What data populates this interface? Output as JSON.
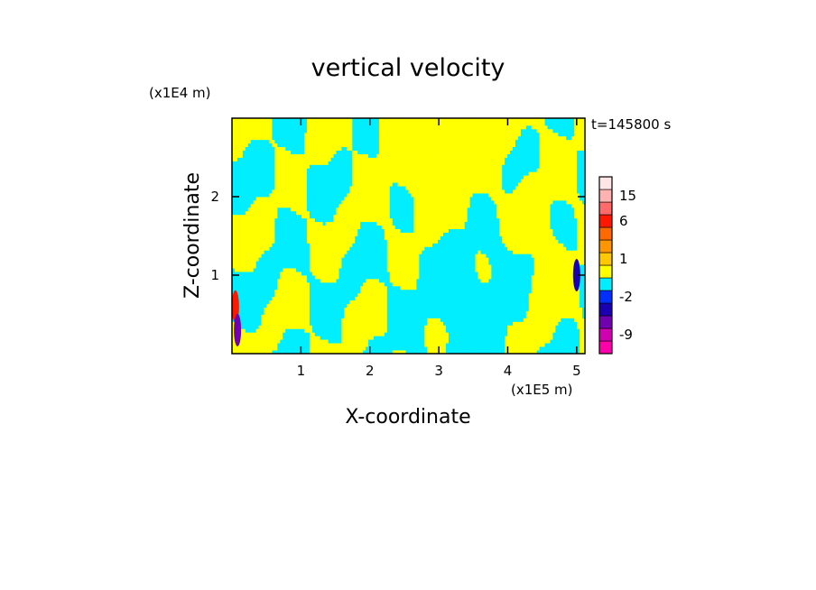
{
  "chart_data": {
    "type": "heatmap",
    "title": "vertical velocity",
    "xlabel": "X-coordinate",
    "ylabel": "Z-coordinate",
    "x_unit": "(x1E5 m)",
    "y_unit": "(x1E4 m)",
    "xlim": [
      0,
      5.12
    ],
    "ylim": [
      0,
      3.0
    ],
    "x_ticks": [
      1,
      2,
      3,
      4,
      5
    ],
    "x_tick_labels": [
      "1",
      "2",
      "3",
      "4",
      "5"
    ],
    "y_ticks": [
      1,
      2
    ],
    "y_tick_labels": [
      "1",
      "2"
    ],
    "time_label": "t=145800 s",
    "colorbar": {
      "levels": [
        {
          "lower": -12,
          "upper": -9,
          "color": "#ff00aa"
        },
        {
          "lower": -9,
          "upper": -6,
          "color": "#d000b0"
        },
        {
          "lower": -6,
          "upper": -4,
          "color": "#7000b0"
        },
        {
          "lower": -4,
          "upper": -2,
          "color": "#1a00b0"
        },
        {
          "lower": -2,
          "upper": -1,
          "color": "#0030ff"
        },
        {
          "lower": -1,
          "upper": 0,
          "color": "#00eeff"
        },
        {
          "lower": 0,
          "upper": 1,
          "color": "#ffff00"
        },
        {
          "lower": 1,
          "upper": 2,
          "color": "#ffc800"
        },
        {
          "lower": 2,
          "upper": 4,
          "color": "#ff9600"
        },
        {
          "lower": 4,
          "upper": 6,
          "color": "#ff6a00"
        },
        {
          "lower": 6,
          "upper": 10,
          "color": "#ff1800"
        },
        {
          "lower": 10,
          "upper": 15,
          "color": "#ff6a6a"
        },
        {
          "lower": 15,
          "upper": 20,
          "color": "#ffb2b2"
        },
        {
          "lower": 20,
          "upper": 30,
          "color": "#ffe6e6"
        }
      ],
      "tick_values": [
        -9,
        -2,
        1,
        6,
        15
      ],
      "tick_labels": [
        "-9",
        "-2",
        "1",
        "6",
        "15"
      ]
    },
    "colors": {
      "updraft": "#ffff00",
      "downdraft": "#00eeff"
    },
    "features": [
      {
        "kind": "updraft",
        "x": 2.8,
        "z": 2.6,
        "w": 0.5
      },
      {
        "kind": "updraft",
        "x": 3.3,
        "z": 2.3,
        "w": 0.6
      },
      {
        "kind": "downdraft",
        "x": 3.6,
        "z": 0.6,
        "w": -0.5
      },
      {
        "kind": "updraft",
        "x": 4.6,
        "z": 1.2,
        "w": 0.5
      },
      {
        "kind": "downdraft",
        "x": 1.1,
        "z": 2.6,
        "w": -0.4
      },
      {
        "kind": "updraft",
        "x": 0.05,
        "z": 0.6,
        "w": 8
      },
      {
        "kind": "downdraft",
        "x": 0.08,
        "z": 0.3,
        "w": -6
      },
      {
        "kind": "downdraft",
        "x": 5.0,
        "z": 1.0,
        "w": -4
      }
    ]
  }
}
